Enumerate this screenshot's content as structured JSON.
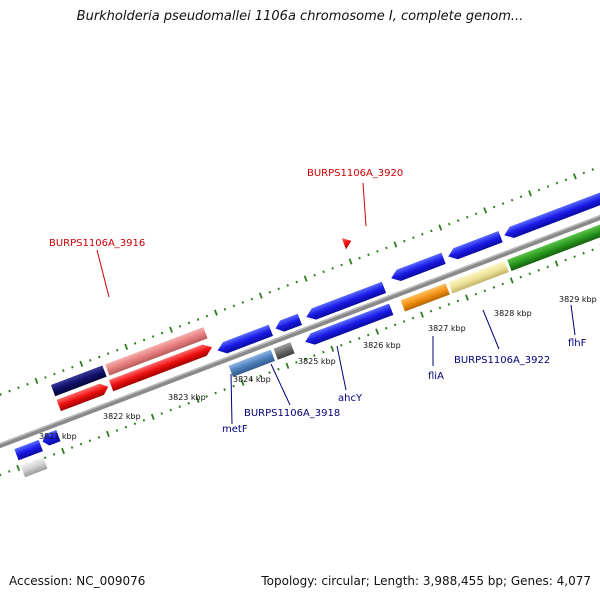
{
  "title": "Burkholderia pseudomallei 1106a chromosome I, complete genom...",
  "footer": {
    "accession": "Accession: NC_009076",
    "topology": "Topology: circular; Length: 3,988,455 bp; Genes: 4,077"
  },
  "colors": {
    "backbone": "#8a8a8a",
    "tick": "#2e7d1e",
    "red_label": "#cc0000",
    "blue_label": "#00007a"
  },
  "kbp_labels": [
    "3821 kbp",
    "3822 kbp",
    "3823 kbp",
    "3824 kbp",
    "3825 kbp",
    "3826 kbp",
    "3827 kbp",
    "3828 kbp",
    "3829 kbp"
  ],
  "gene_labels": {
    "burps_3920": "BURPS1106A_3920",
    "burps_3916": "BURPS1106A_3916",
    "burps_3918": "BURPS1106A_3918",
    "burps_3922": "BURPS1106A_3922",
    "metF": "metF",
    "ahcY": "ahcY",
    "fliA": "fliA",
    "flhF": "flhF"
  }
}
